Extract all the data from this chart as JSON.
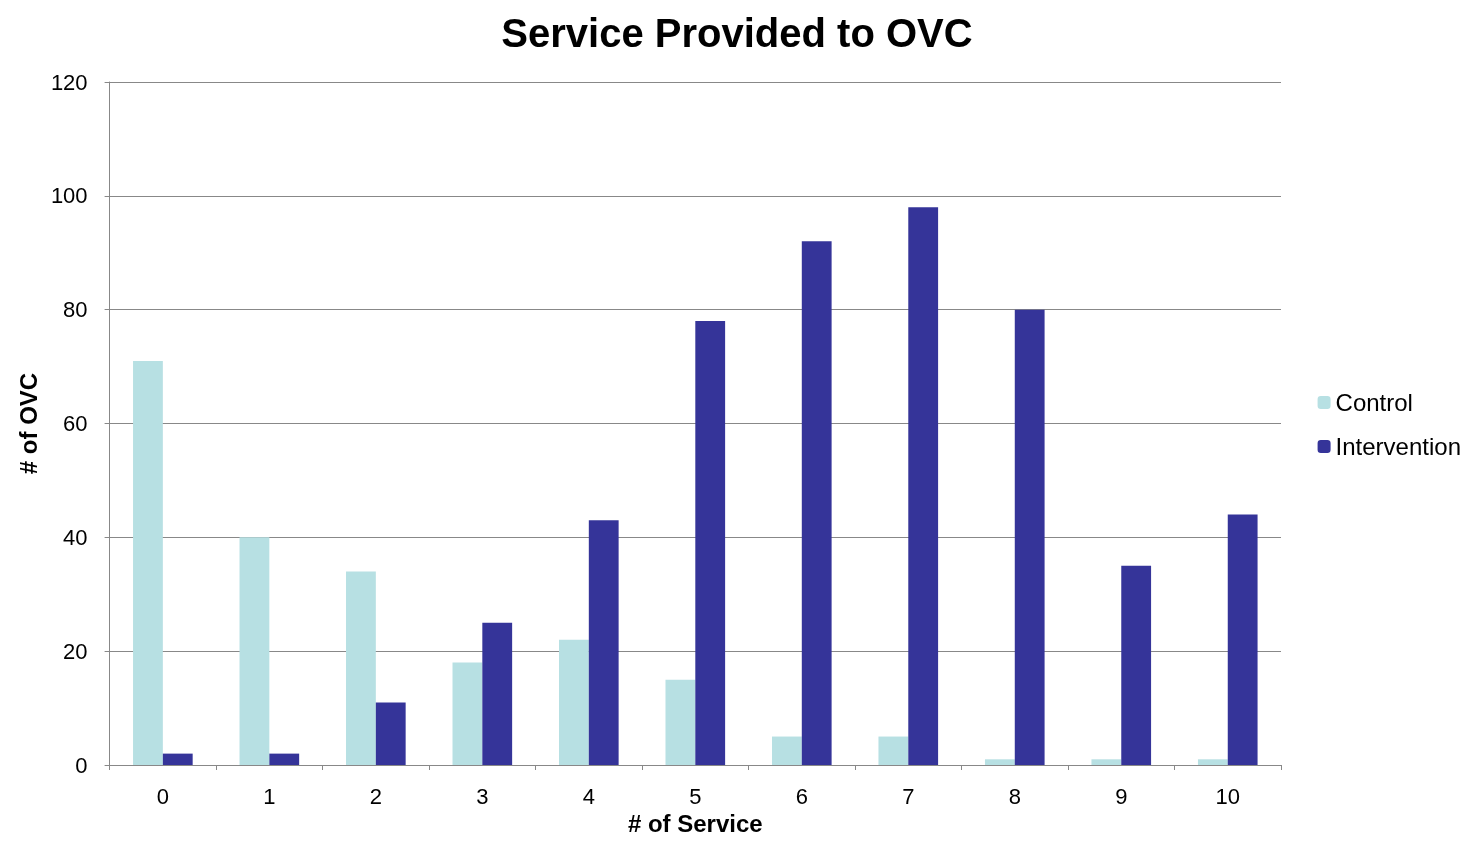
{
  "chart_data": {
    "type": "bar",
    "title": "Service Provided to OVC",
    "xlabel": "# of Service",
    "ylabel": "# of OVC",
    "categories": [
      "0",
      "1",
      "2",
      "3",
      "4",
      "5",
      "6",
      "7",
      "8",
      "9",
      "10"
    ],
    "series": [
      {
        "name": "Control",
        "color": "#b7e0e3",
        "values": [
          71,
          40,
          34,
          18,
          22,
          15,
          5,
          5,
          1,
          1,
          1
        ]
      },
      {
        "name": "Intervention",
        "color": "#353499",
        "values": [
          2,
          2,
          11,
          25,
          43,
          78,
          92,
          98,
          80,
          35,
          44
        ]
      }
    ],
    "ylim": [
      0,
      120
    ],
    "yticks": [
      0,
      20,
      40,
      60,
      80,
      100,
      120
    ],
    "grid": "y",
    "legend": "right"
  }
}
